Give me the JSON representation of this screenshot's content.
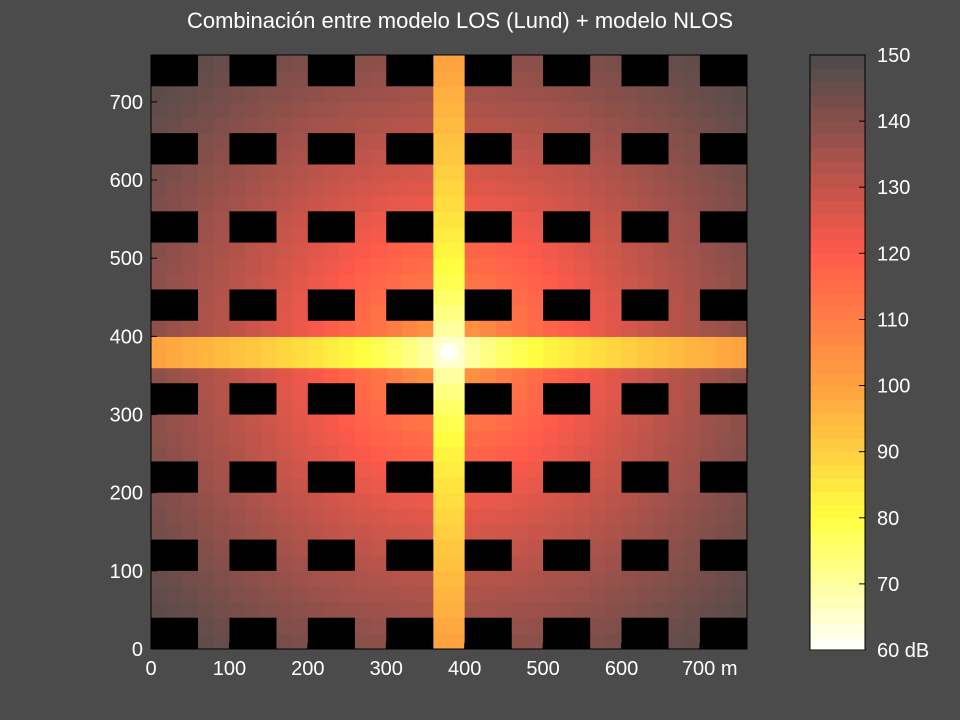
{
  "title": "Combinación entre modelo LOS (Lund) + modelo NLOS",
  "colors": {
    "background": "#4b4b4b",
    "axis_text": "#ffffff",
    "building": "#000000",
    "colormap_low": "#ffffff",
    "colormap_mid_low": "#ffff40",
    "colormap_mid": "#ffa040",
    "colormap_mid_high": "#ff5a4a",
    "colormap_high": "#4a4a4a"
  },
  "chart_data": {
    "type": "heatmap",
    "title": "Combinación entre modelo LOS (Lund) + modelo NLOS",
    "x": {
      "range": [
        0,
        760
      ],
      "ticks": [
        0,
        100,
        200,
        300,
        400,
        500,
        600,
        700
      ],
      "tick_labels": [
        "0",
        "100",
        "200",
        "300",
        "400",
        "500",
        "600",
        "700 m"
      ]
    },
    "y": {
      "range": [
        0,
        760
      ],
      "ticks": [
        0,
        100,
        200,
        300,
        400,
        500,
        600,
        700
      ],
      "tick_labels": [
        "0",
        "100",
        "200",
        "300",
        "400",
        "500",
        "600",
        "700"
      ]
    },
    "colorbar": {
      "range": [
        60,
        150
      ],
      "ticks": [
        60,
        70,
        80,
        90,
        100,
        110,
        120,
        130,
        140,
        150
      ],
      "tick_labels": [
        "60 dB",
        "70",
        "80",
        "90",
        "100",
        "110",
        "120",
        "130",
        "140",
        "150"
      ],
      "unit": "dB"
    },
    "transmitter": [
      380,
      380
    ],
    "buildings": {
      "x_ranges": [
        [
          0,
          60
        ],
        [
          100,
          160
        ],
        [
          200,
          260
        ],
        [
          300,
          360
        ],
        [
          400,
          460
        ],
        [
          500,
          560
        ],
        [
          600,
          660
        ],
        [
          700,
          760
        ]
      ],
      "y_ranges": [
        [
          0,
          40
        ],
        [
          100,
          140
        ],
        [
          200,
          240
        ],
        [
          300,
          340
        ],
        [
          420,
          460
        ],
        [
          520,
          560
        ],
        [
          620,
          660
        ],
        [
          720,
          760
        ]
      ]
    },
    "streets": {
      "vertical": [
        [
          360,
          400
        ]
      ],
      "horizontal": [
        [
          360,
          400
        ]
      ]
    },
    "path_loss_db": {
      "at_transmitter": 60,
      "los_street_far_end": 100,
      "nlos_far_corner": 150
    }
  }
}
